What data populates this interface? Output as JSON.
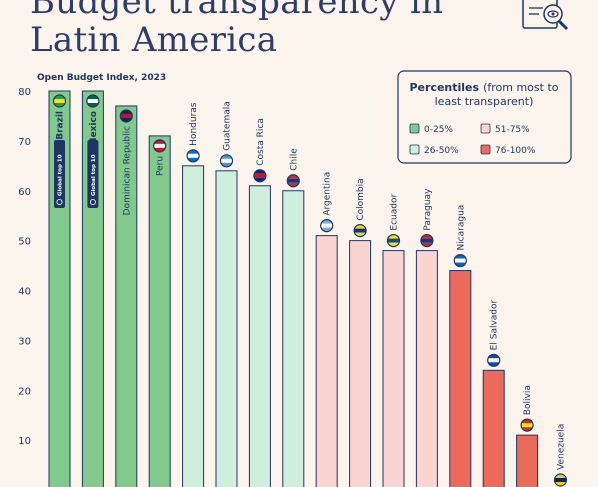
{
  "header": {
    "title_line1": "Budget transparency in",
    "title_line2": "Latin America"
  },
  "chart_data": {
    "type": "bar",
    "subtitle": "Open Budget Index, 2023",
    "ylim": [
      0,
      80
    ],
    "yticks": [
      10,
      20,
      30,
      40,
      50,
      60,
      70,
      80
    ],
    "categories": [
      "Brazil",
      "Mexico",
      "Dominican Republic",
      "Peru",
      "Honduras",
      "Guatemala",
      "Costa Rica",
      "Chile",
      "Argentina",
      "Colombia",
      "Ecuador",
      "Paraguay",
      "Nicaragua",
      "El Salvador",
      "Bolivia",
      "Venezuela"
    ],
    "values": [
      80,
      80,
      77,
      71,
      65,
      64,
      61,
      60,
      51,
      50,
      48,
      48,
      44,
      24,
      11,
      0
    ],
    "groups": [
      0,
      0,
      0,
      0,
      1,
      1,
      1,
      1,
      2,
      2,
      2,
      2,
      3,
      3,
      3,
      3
    ],
    "badges": [
      "Global top 10",
      "Global top 10"
    ],
    "badge_bars": [
      0,
      1
    ],
    "legend": {
      "title_bold": "Percentiles",
      "title_rest_1": "(from most to",
      "title_rest_2": "least transparent)",
      "placement": "top-right",
      "items": [
        {
          "label": "0-25%",
          "color": "#82c98c"
        },
        {
          "label": "51-75%",
          "color": "#fbd3d1"
        },
        {
          "label": "26-50%",
          "color": "#cfeede"
        },
        {
          "label": "76-100%",
          "color": "#ec6a5c"
        }
      ]
    },
    "flag_colors": [
      [
        "#229e45",
        "#f8e509"
      ],
      [
        "#006847",
        "#ffffff"
      ],
      [
        "#002d62",
        "#ce1126"
      ],
      [
        "#d91023",
        "#ffffff"
      ],
      [
        "#0073cf",
        "#ffffff"
      ],
      [
        "#4997d0",
        "#ffffff"
      ],
      [
        "#002b7f",
        "#ce1126"
      ],
      [
        "#d52b1e",
        "#0039a6"
      ],
      [
        "#74acdf",
        "#ffffff"
      ],
      [
        "#fcd116",
        "#003893"
      ],
      [
        "#ffdd00",
        "#034ea2"
      ],
      [
        "#d52b1e",
        "#0038a8"
      ],
      [
        "#0067c6",
        "#ffffff"
      ],
      [
        "#0f47af",
        "#ffffff"
      ],
      [
        "#d52b1e",
        "#f9e300"
      ],
      [
        "#ffcc00",
        "#00247d"
      ]
    ]
  }
}
